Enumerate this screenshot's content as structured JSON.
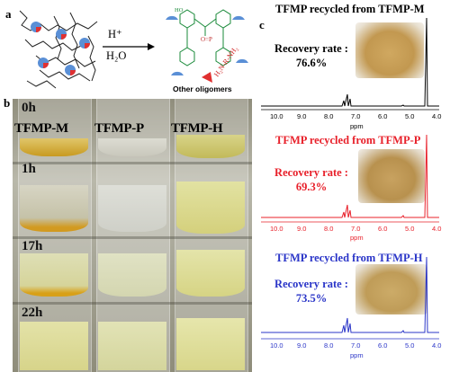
{
  "panels": {
    "a": "a",
    "b": "b",
    "c": "c"
  },
  "scheme": {
    "reagent_top": "H⁺",
    "reagent_bottom": "H₂O",
    "amine_label": "H₂N-R-NH₂",
    "oligomer_label": "Other oligomers",
    "oh_label": "HO"
  },
  "vials": {
    "names": [
      "TFMP-M",
      "TFMP-P",
      "TFMP-H"
    ],
    "times": [
      "0h",
      "1h",
      "17h",
      "22h"
    ]
  },
  "nmr": [
    {
      "title": "TFMP recycled from TFMP-M",
      "rate_label": "Recovery rate :",
      "rate": "76.6%",
      "color": "#000000"
    },
    {
      "title": "TFMP recycled from TFMP-P",
      "rate_label": "Recovery rate :",
      "rate": "69.3%",
      "color": "#e8202a"
    },
    {
      "title": "TFMP recycled from TFMP-H",
      "rate_label": "Recovery rate :",
      "rate": "73.5%",
      "color": "#2a35c8"
    }
  ],
  "axis": {
    "ticks": [
      "10.0",
      "9.0",
      "8.0",
      "7.0",
      "6.0",
      "5.0",
      "4.0"
    ],
    "unit": "ppm"
  }
}
